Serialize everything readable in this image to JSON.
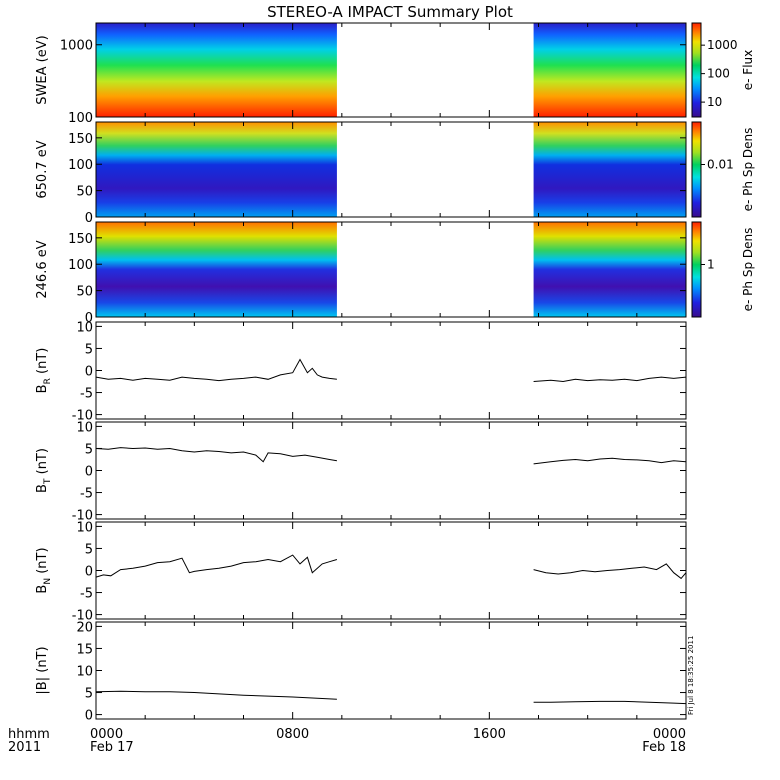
{
  "title": "STEREO-A IMPACT Summary Plot",
  "colors": {
    "axis": "#000000",
    "background": "#ffffff",
    "line": "#000000",
    "spectrogram_colormap": [
      "#3a0d8c",
      "#2020e0",
      "#0090ff",
      "#00e0e0",
      "#00d060",
      "#a0e020",
      "#f0e000",
      "#ff8000",
      "#ff2000"
    ]
  },
  "x_axis": {
    "tick_labels": [
      "0000",
      "0800",
      "1600",
      "0000"
    ],
    "row1_left": "hhmm",
    "row2_left": "2011",
    "date_left": "Feb 17",
    "date_right": "Feb 18",
    "range_hours": [
      0,
      24
    ],
    "data_gap_hours": [
      9.8,
      17.8
    ]
  },
  "side_note": "Fri Jul  8 18:35:25 2011",
  "chart_data": [
    {
      "type": "heatmap",
      "panel": "swea",
      "ylabel": "SWEA (eV)",
      "yscale": "log",
      "ylim": [
        100,
        2000
      ],
      "ytick_labels": [
        "100",
        "1000"
      ],
      "colorbar": {
        "label": "e- Flux",
        "scale": "log",
        "range": [
          3,
          6000
        ],
        "tick_labels": [
          "10",
          "100",
          "1000"
        ]
      },
      "data_gap_hours": [
        9.8,
        17.8
      ]
    },
    {
      "type": "heatmap",
      "panel": "pad_650",
      "ylabel": "650.7 eV",
      "ylim": [
        0,
        180
      ],
      "ytick_labels": [
        "0",
        "50",
        "100",
        "150"
      ],
      "colorbar": {
        "label": "e- Ph Sp Dens",
        "scale": "log",
        "tick_labels": [
          "0.01"
        ]
      },
      "data_gap_hours": [
        9.8,
        17.8
      ]
    },
    {
      "type": "heatmap",
      "panel": "pad_246",
      "ylabel": "246.6 eV",
      "ylim": [
        0,
        180
      ],
      "ytick_labels": [
        "0",
        "50",
        "100",
        "150"
      ],
      "colorbar": {
        "label": "e- Ph Sp Dens",
        "scale": "log",
        "tick_labels": [
          "1"
        ]
      },
      "data_gap_hours": [
        9.8,
        17.8
      ]
    },
    {
      "type": "line",
      "panel": "br",
      "ylabel": {
        "main": "B",
        "sub": "R",
        "unit": "(nT)"
      },
      "ylim": [
        -11,
        11
      ],
      "ytick_labels": [
        "-10",
        "-5",
        "0",
        "5",
        "10"
      ],
      "x": [
        0,
        0.5,
        1,
        1.5,
        2,
        2.5,
        3,
        3.5,
        4,
        4.5,
        5,
        5.5,
        6,
        6.5,
        7,
        7.5,
        8,
        8.3,
        8.6,
        8.8,
        9.0,
        9.2,
        9.5,
        9.8,
        17.8,
        18.5,
        19,
        19.5,
        20,
        20.5,
        21,
        21.5,
        22,
        22.5,
        23,
        23.5,
        24
      ],
      "values": [
        -1.5,
        -2,
        -1.8,
        -2.2,
        -1.8,
        -2.0,
        -2.2,
        -1.5,
        -1.8,
        -2.0,
        -2.3,
        -2.0,
        -1.8,
        -1.5,
        -2.0,
        -1.0,
        -0.5,
        2.5,
        -0.5,
        0.5,
        -1.0,
        -1.5,
        -1.8,
        -2.0,
        -2.5,
        -2.2,
        -2.5,
        -2.0,
        -2.3,
        -2.1,
        -2.2,
        -2.0,
        -2.3,
        -1.8,
        -1.5,
        -1.8,
        -1.5
      ],
      "gap_hours": [
        9.8,
        17.8
      ]
    },
    {
      "type": "line",
      "panel": "bt",
      "ylabel": {
        "main": "B",
        "sub": "T",
        "unit": "(nT)"
      },
      "ylim": [
        -11,
        11
      ],
      "ytick_labels": [
        "-10",
        "-5",
        "0",
        "5",
        "10"
      ],
      "x": [
        0,
        0.5,
        1,
        1.5,
        2,
        2.5,
        3,
        3.5,
        4,
        4.5,
        5,
        5.5,
        6,
        6.5,
        6.8,
        7,
        7.5,
        8,
        8.5,
        9,
        9.5,
        9.8,
        17.8,
        18.5,
        19,
        19.5,
        20,
        20.5,
        21,
        21.5,
        22,
        22.5,
        23,
        23.5,
        24
      ],
      "values": [
        5,
        4.8,
        5.2,
        5.0,
        5.1,
        4.8,
        5.0,
        4.5,
        4.2,
        4.5,
        4.3,
        4.0,
        4.2,
        3.5,
        2.0,
        4.0,
        3.8,
        3.2,
        3.5,
        3.0,
        2.5,
        2.2,
        1.5,
        2.0,
        2.3,
        2.5,
        2.2,
        2.6,
        2.8,
        2.5,
        2.4,
        2.2,
        1.8,
        2.2,
        2.0
      ],
      "gap_hours": [
        9.8,
        17.8
      ]
    },
    {
      "type": "line",
      "panel": "bn",
      "ylabel": {
        "main": "B",
        "sub": "N",
        "unit": "(nT)"
      },
      "ylim": [
        -11,
        11
      ],
      "ytick_labels": [
        "-10",
        "-5",
        "0",
        "5",
        "10"
      ],
      "x": [
        0,
        0.3,
        0.6,
        1,
        1.5,
        2,
        2.5,
        3,
        3.5,
        3.8,
        4,
        4.5,
        5,
        5.5,
        6,
        6.5,
        7,
        7.5,
        8,
        8.3,
        8.6,
        8.8,
        9.2,
        9.5,
        9.8,
        17.8,
        18.3,
        18.8,
        19.3,
        19.8,
        20.3,
        20.8,
        21.3,
        21.8,
        22.3,
        22.8,
        23.2,
        23.5,
        23.8,
        24
      ],
      "values": [
        -1.5,
        -1.0,
        -1.2,
        0.2,
        0.5,
        1.0,
        1.8,
        2.0,
        2.8,
        -0.5,
        -0.2,
        0.2,
        0.5,
        1.0,
        1.8,
        2.0,
        2.5,
        2.0,
        3.5,
        1.5,
        3.0,
        -0.5,
        1.5,
        2.0,
        2.5,
        0.2,
        -0.5,
        -0.8,
        -0.5,
        0.0,
        -0.3,
        0.0,
        0.2,
        0.5,
        0.8,
        0.2,
        1.5,
        -0.5,
        -1.8,
        -0.5
      ],
      "gap_hours": [
        9.8,
        17.8
      ]
    },
    {
      "type": "line",
      "panel": "bmag",
      "ylabel": {
        "main": "|B|",
        "sub": "",
        "unit": "(nT)"
      },
      "ylim": [
        -1,
        21
      ],
      "ytick_labels": [
        "0",
        "5",
        "10",
        "15",
        "20"
      ],
      "x": [
        0,
        1,
        2,
        3,
        4,
        5,
        6,
        7,
        8,
        9,
        9.8,
        17.8,
        18.5,
        19.5,
        20.5,
        21.5,
        22.5,
        23.5,
        24
      ],
      "values": [
        5.2,
        5.3,
        5.2,
        5.2,
        5.0,
        4.7,
        4.4,
        4.2,
        4.0,
        3.7,
        3.5,
        2.8,
        2.8,
        2.9,
        3.0,
        3.0,
        2.8,
        2.6,
        2.5
      ],
      "gap_hours": [
        9.8,
        17.8
      ]
    }
  ]
}
